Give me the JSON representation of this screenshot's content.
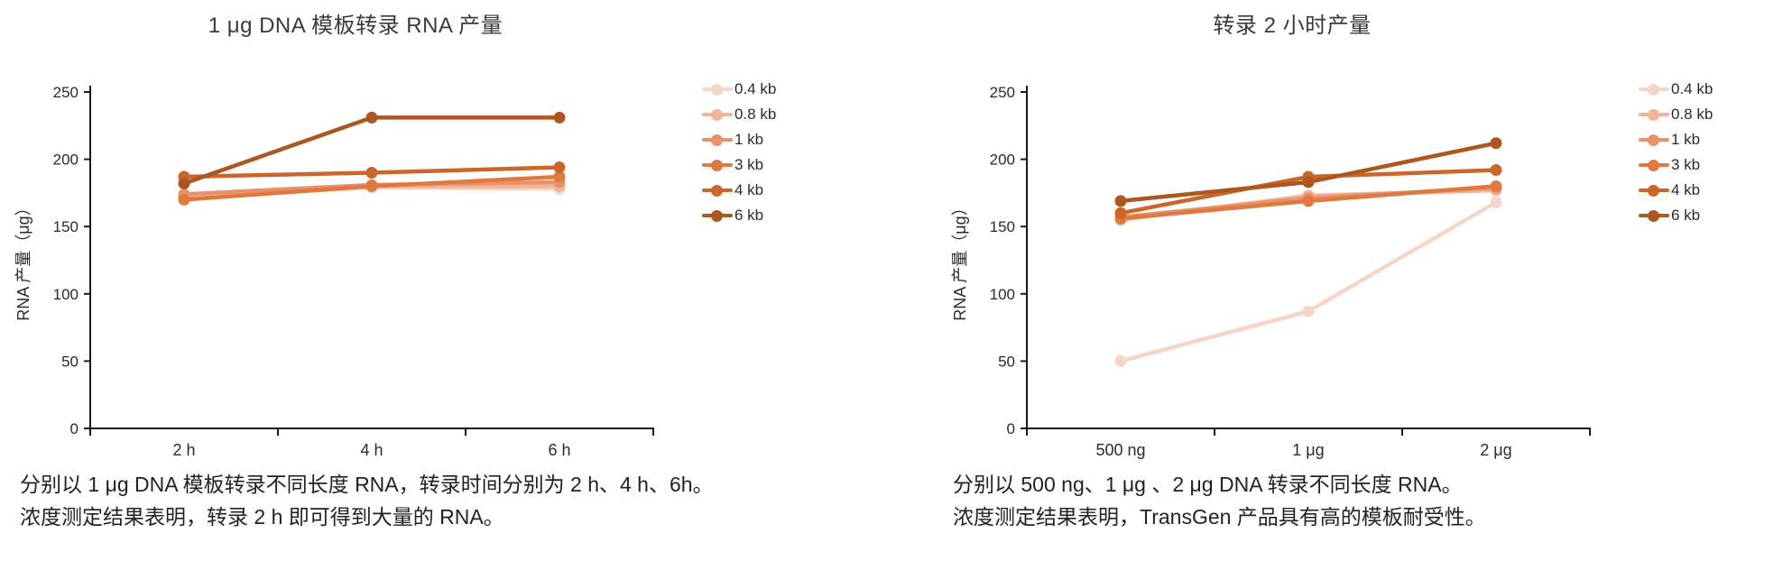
{
  "styles": {
    "axis_color": "#1a1a1a",
    "label_color": "#2b2b2b",
    "caption_color": "#222222"
  },
  "chart_data": [
    {
      "type": "line",
      "title": "1 μg DNA 模板转录 RNA 产量",
      "xlabel": "",
      "ylabel": "RNA 产量（μg）",
      "ylim": [
        0,
        250
      ],
      "ytick_step": 50,
      "grid": false,
      "legend_position": "right",
      "categories": [
        "2 h",
        "4 h",
        "6 h"
      ],
      "series": [
        {
          "name": "0.4 kb",
          "color": "#F5D5C5",
          "values": [
            172,
            179,
            178
          ]
        },
        {
          "name": "0.8 kb",
          "color": "#F0B49B",
          "values": [
            171,
            180,
            180
          ]
        },
        {
          "name": "1 kb",
          "color": "#E9916A",
          "values": [
            174,
            181,
            183
          ]
        },
        {
          "name": "3 kb",
          "color": "#E0793F",
          "values": [
            170,
            180,
            187
          ]
        },
        {
          "name": "4 kb",
          "color": "#CA6728",
          "values": [
            187,
            190,
            194
          ]
        },
        {
          "name": "6 kb",
          "color": "#AC5620",
          "values": [
            182,
            231,
            231
          ]
        }
      ],
      "caption_lines": [
        "分别以 1 μg DNA 模板转录不同长度 RNA，转录时间分别为 2 h、4 h、6h。",
        "浓度测定结果表明，转录 2 h 即可得到大量的 RNA。"
      ]
    },
    {
      "type": "line",
      "title": "转录 2 小时产量",
      "xlabel": "",
      "ylabel": "RNA 产量（μg）",
      "ylim": [
        0,
        250
      ],
      "ytick_step": 50,
      "grid": false,
      "legend_position": "right",
      "categories": [
        "500 ng",
        "1 μg",
        "2 μg"
      ],
      "series": [
        {
          "name": "0.4 kb",
          "color": "#F5D5C5",
          "values": [
            50,
            87,
            168
          ]
        },
        {
          "name": "0.8 kb",
          "color": "#F0B49B",
          "values": [
            155,
            173,
            177
          ]
        },
        {
          "name": "1 kb",
          "color": "#E9916A",
          "values": [
            157,
            171,
            179
          ]
        },
        {
          "name": "3 kb",
          "color": "#E0793F",
          "values": [
            156,
            169,
            180
          ]
        },
        {
          "name": "4 kb",
          "color": "#CA6728",
          "values": [
            160,
            187,
            192
          ]
        },
        {
          "name": "6 kb",
          "color": "#AC5620",
          "values": [
            169,
            183,
            212
          ]
        }
      ],
      "caption_lines": [
        "分别以 500 ng、1 μg 、2 μg DNA 转录不同长度 RNA。",
        "浓度测定结果表明，TransGen 产品具有高的模板耐受性。"
      ]
    }
  ]
}
